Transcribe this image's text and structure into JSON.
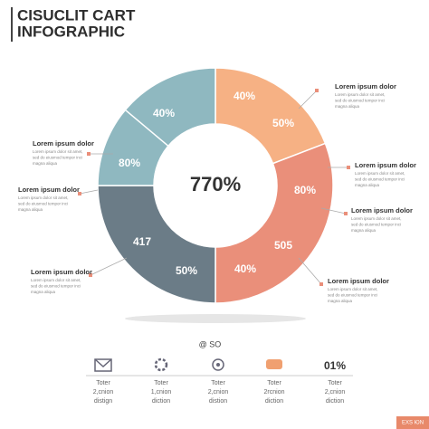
{
  "header": {
    "title": [
      "CISUCLIT CART",
      "INFOGRAPHIC"
    ]
  },
  "donut": {
    "center": "770%",
    "labels": [
      "40%",
      "50%",
      "40%",
      "80%",
      "80%",
      "417",
      "505",
      "50%",
      "40%"
    ]
  },
  "callouts": [
    {
      "heading": "Lorem ipsum dolor",
      "lines": [
        "Lorem ipsum dolor sit amet,",
        "sed do eiusmod tempor inci",
        "magna aliqua"
      ]
    },
    {
      "heading": "Lorem ipsum dolor",
      "lines": [
        "Lorem ipsum dolor sit amet,",
        "sed do eiusmod tempor inci",
        "magna aliqua"
      ]
    },
    {
      "heading": "Lorem ipsum dolor",
      "lines": [
        "Lorem ipsum dolor sit amet,",
        "sed do eiusmod tempor inci",
        "magna aliqua"
      ]
    },
    {
      "heading": "Lorem ipsum dolor",
      "lines": [
        "Lorem ipsum dolor sit amet,",
        "sed do eiusmod tempor inci",
        "magna aliqua"
      ]
    },
    {
      "heading": "Lorem ipsum dolor",
      "lines": [
        "Lorem ipsum dolor sit amet,",
        "sed do eiusmod tempor inci",
        "magna aliqua"
      ]
    },
    {
      "heading": "Lorem ipsum dolor",
      "lines": [
        "Lorem ipsum dolor sit amet,",
        "sed do eiusmod tempor inci",
        "magna aliqua"
      ]
    },
    {
      "heading": "Lorem ipsum dolor",
      "lines": [
        "Lorem ipsum dolor sit amet,",
        "sed do eiusmod tempor inci",
        "magna aliqua"
      ]
    }
  ],
  "footer": {
    "caption": "@ SO",
    "items": [
      {
        "lines": [
          "Toter",
          "2,cnion",
          "distign"
        ]
      },
      {
        "lines": [
          "Toter",
          "1,cnion",
          "diction"
        ]
      },
      {
        "lines": [
          "Toter",
          "2,cnion",
          "distion"
        ]
      },
      {
        "lines": [
          "Toter",
          "2rcnion",
          "diction"
        ]
      },
      {
        "stat": "01%",
        "lines": [
          "Toter",
          "2,cnion",
          "diction"
        ]
      }
    ],
    "badge": "EXS ЮN"
  }
}
